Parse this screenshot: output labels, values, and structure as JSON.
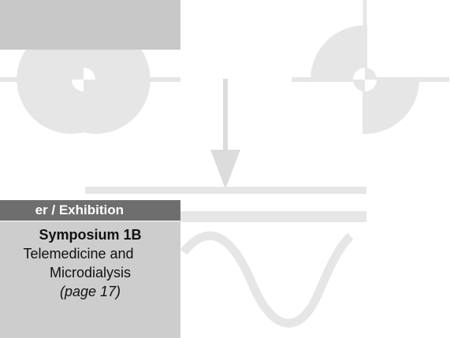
{
  "panel": {
    "header": "er / Exhibition",
    "title": "Symposium 1B",
    "subtitle_line1": "Telemedicine and",
    "subtitle_line2": "Microdialysis",
    "page_ref": "(page 17)"
  },
  "icons": [
    "crosshair-target-icon",
    "down-arrow-icon",
    "sine-wave-icon"
  ],
  "colors": {
    "light_gray": "#e6e6e6",
    "panel_gray": "#cdcdcd",
    "header_gray": "#6e6e6e"
  }
}
